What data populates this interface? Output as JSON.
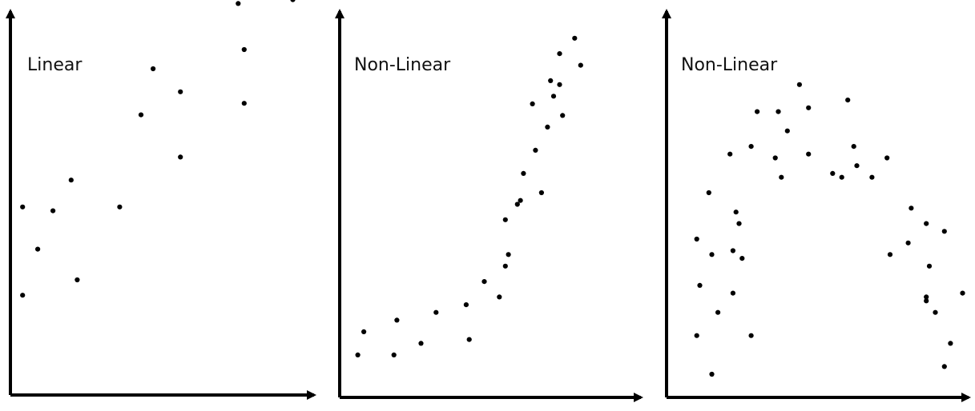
{
  "chart_data": [
    {
      "type": "scatter",
      "title": "Linear",
      "xlabel": "",
      "ylabel": "",
      "grid": false,
      "legend": "none",
      "xlim": [
        0,
        100
      ],
      "ylim": [
        0,
        100
      ],
      "points": [
        [
          4,
          49
        ],
        [
          4,
          26
        ],
        [
          9,
          38
        ],
        [
          14,
          48
        ],
        [
          20,
          56
        ],
        [
          22,
          30
        ],
        [
          36,
          49
        ],
        [
          43,
          73
        ],
        [
          47,
          85
        ],
        [
          56,
          79
        ],
        [
          56,
          62
        ],
        [
          75,
          102
        ],
        [
          77,
          90
        ],
        [
          77,
          76
        ],
        [
          93,
          103
        ]
      ]
    },
    {
      "type": "scatter",
      "title": "Non-Linear",
      "xlabel": "",
      "ylabel": "",
      "grid": false,
      "legend": "none",
      "xlim": [
        0,
        100
      ],
      "ylim": [
        0,
        100
      ],
      "points": [
        [
          6,
          11
        ],
        [
          8,
          17
        ],
        [
          18,
          11
        ],
        [
          19,
          20
        ],
        [
          27,
          14
        ],
        [
          32,
          22
        ],
        [
          42,
          24
        ],
        [
          43,
          15
        ],
        [
          48,
          30
        ],
        [
          53,
          26
        ],
        [
          55,
          46
        ],
        [
          55,
          34
        ],
        [
          56,
          37
        ],
        [
          59,
          50
        ],
        [
          60,
          51
        ],
        [
          61,
          58
        ],
        [
          64,
          76
        ],
        [
          65,
          64
        ],
        [
          67,
          53
        ],
        [
          69,
          70
        ],
        [
          70,
          82
        ],
        [
          71,
          78
        ],
        [
          73,
          89
        ],
        [
          73,
          81
        ],
        [
          74,
          73
        ],
        [
          78,
          93
        ],
        [
          80,
          86
        ]
      ]
    },
    {
      "type": "scatter",
      "title": "Non-Linear",
      "xlabel": "",
      "ylabel": "",
      "grid": false,
      "legend": "none",
      "xlim": [
        0,
        100
      ],
      "ylim": [
        0,
        100
      ],
      "points": [
        [
          10,
          41
        ],
        [
          10,
          16
        ],
        [
          11,
          29
        ],
        [
          14,
          53
        ],
        [
          15,
          37
        ],
        [
          15,
          6
        ],
        [
          17,
          22
        ],
        [
          21,
          63
        ],
        [
          22,
          38
        ],
        [
          22,
          27
        ],
        [
          23,
          48
        ],
        [
          24,
          45
        ],
        [
          25,
          36
        ],
        [
          28,
          65
        ],
        [
          28,
          16
        ],
        [
          30,
          74
        ],
        [
          36,
          62
        ],
        [
          37,
          74
        ],
        [
          38,
          57
        ],
        [
          40,
          69
        ],
        [
          44,
          81
        ],
        [
          47,
          75
        ],
        [
          47,
          63
        ],
        [
          55,
          58
        ],
        [
          58,
          57
        ],
        [
          60,
          77
        ],
        [
          62,
          65
        ],
        [
          63,
          60
        ],
        [
          68,
          57
        ],
        [
          73,
          62
        ],
        [
          74,
          37
        ],
        [
          80,
          40
        ],
        [
          81,
          49
        ],
        [
          86,
          26
        ],
        [
          86,
          45
        ],
        [
          86,
          25
        ],
        [
          87,
          34
        ],
        [
          89,
          22
        ],
        [
          92,
          43
        ],
        [
          92,
          8
        ],
        [
          94,
          14
        ],
        [
          98,
          27
        ]
      ]
    }
  ]
}
